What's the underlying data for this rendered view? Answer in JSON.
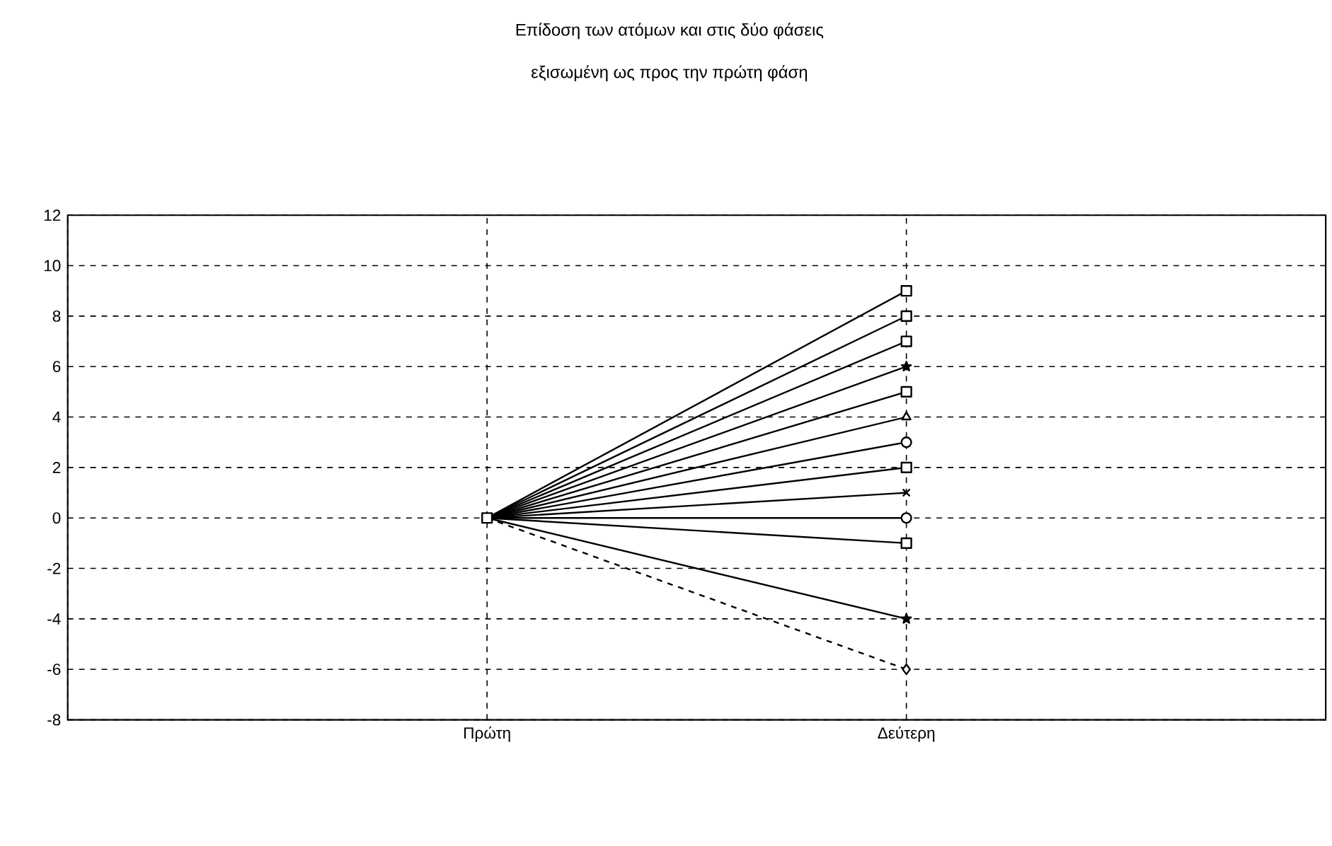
{
  "chart_data": {
    "type": "line",
    "title": "Επίδοση των ατόμων και στις δύο φάσεις",
    "subtitle": "εξισωμένη ως προς την πρώτη φάση",
    "categories": [
      null,
      "Πρώτη",
      "Δεύτερη",
      null
    ],
    "ylim": [
      -8,
      12
    ],
    "yticks": [
      -8,
      -6,
      -4,
      -2,
      0,
      2,
      4,
      6,
      8,
      10,
      12
    ],
    "grid": true,
    "series": [
      {
        "color": "#000000",
        "marker": "square",
        "values": [
          null,
          0,
          9,
          null
        ]
      },
      {
        "color": "#000000",
        "marker": "square",
        "values": [
          null,
          0,
          8,
          null
        ]
      },
      {
        "color": "#000000",
        "marker": "square",
        "values": [
          null,
          0,
          7,
          null
        ]
      },
      {
        "color": "#000000",
        "marker": "star",
        "values": [
          null,
          0,
          6,
          null
        ]
      },
      {
        "color": "#000000",
        "marker": "square",
        "values": [
          null,
          0,
          5,
          null
        ]
      },
      {
        "color": "#000000",
        "marker": "triangle",
        "values": [
          null,
          0,
          4,
          null
        ]
      },
      {
        "color": "#000000",
        "marker": "circle",
        "values": [
          null,
          0,
          3,
          null
        ]
      },
      {
        "color": "#000000",
        "marker": "square",
        "values": [
          null,
          0,
          2,
          null
        ]
      },
      {
        "color": "#000000",
        "marker": "cross",
        "values": [
          null,
          0,
          1,
          null
        ]
      },
      {
        "color": "#000000",
        "marker": "circle",
        "values": [
          null,
          0,
          0,
          null
        ]
      },
      {
        "color": "#000000",
        "marker": "square",
        "values": [
          null,
          0,
          -1,
          null
        ]
      },
      {
        "color": "#000000",
        "marker": "star",
        "values": [
          null,
          0,
          -4,
          null
        ]
      },
      {
        "color": "#000000",
        "marker": "diamond",
        "line_style": "dashed",
        "values": [
          null,
          0,
          -6,
          null
        ]
      }
    ]
  }
}
